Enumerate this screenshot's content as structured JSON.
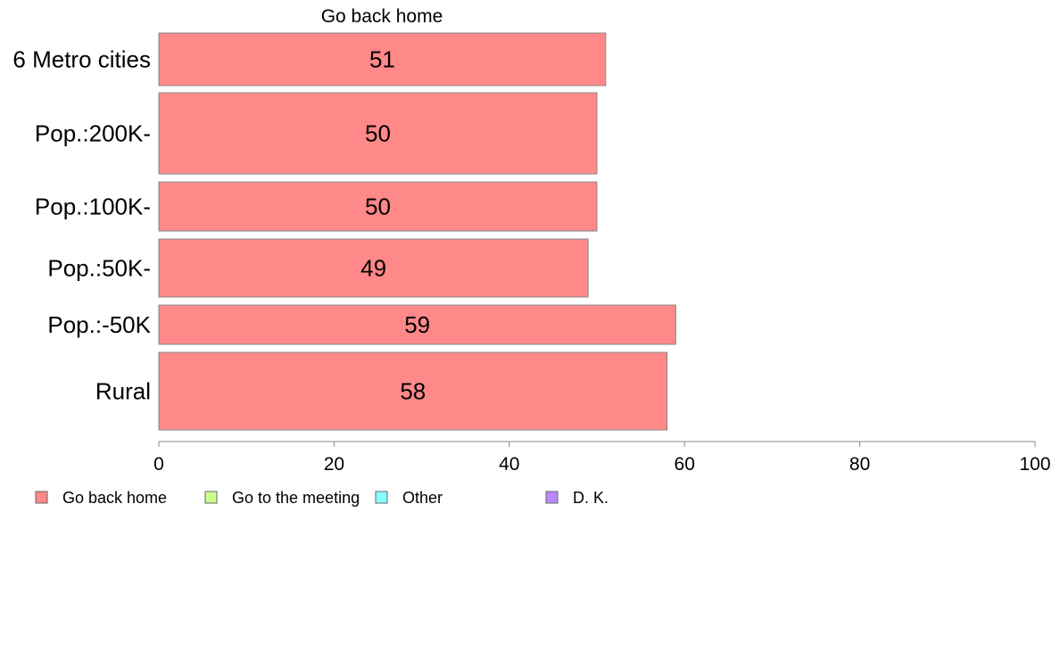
{
  "chart_data": {
    "type": "bar",
    "orientation": "horizontal",
    "title": "Go back home",
    "categories": [
      "6 Metro cities",
      "Pop.:200K-",
      "Pop.:100K-",
      "Pop.:50K-",
      "Pop.:-50K",
      "Rural"
    ],
    "values": [
      51,
      50,
      50,
      49,
      59,
      58
    ],
    "data_labels": [
      "51",
      "50",
      "50",
      "49",
      "59",
      "58"
    ],
    "xlim": [
      0,
      100
    ],
    "x_ticks": [
      0,
      20,
      40,
      60,
      80,
      100
    ],
    "grid": false,
    "legend_position": "bottom-left",
    "legend": [
      {
        "label": "Go back home",
        "color": "#ff8888"
      },
      {
        "label": "Go to the meeting",
        "color": "#ccff88"
      },
      {
        "label": "Other",
        "color": "#88ffff"
      },
      {
        "label": "D. K.",
        "color": "#bb88ff"
      }
    ],
    "bar_color": "#ff8888",
    "bar_border_color": "#888888",
    "axis_color": "#888888"
  }
}
